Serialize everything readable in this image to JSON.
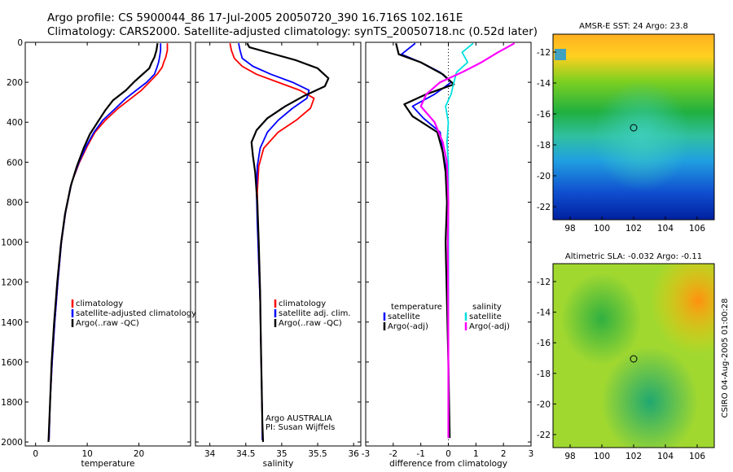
{
  "title": {
    "line1": "Argo profile: CS 5900044_86 17-Jul-2005 20050720_390 16.716S 102.161E",
    "line2": "Climatology: CARS2000. Satellite-adjusted climatology: synTS_20050718.nc (0.52d later)"
  },
  "colors": {
    "climatology": "#ff0000",
    "satellite": "#0000ff",
    "argo": "#000000",
    "salinity": "#00e0e0",
    "salinity_argo": "#ff00ff"
  },
  "chart_data": [
    {
      "type": "line",
      "xlabel": "temperature",
      "xlim": [
        -2,
        30
      ],
      "xticks": [
        0,
        10,
        20
      ],
      "ylim": [
        0,
        2020
      ],
      "yticks": [
        0,
        200,
        400,
        600,
        800,
        1000,
        1200,
        1400,
        1600,
        1800,
        2000
      ],
      "yinvert": true,
      "legend": [
        "climatology",
        "satellite-adjusted climatology",
        "Argo(..raw -QC)"
      ],
      "series": [
        {
          "name": "climatology",
          "color": "#ff0000",
          "x": [
            25.5,
            25.5,
            25.2,
            24.8,
            24.5,
            23.5,
            22.0,
            20.5,
            18.5,
            16.0,
            13.5,
            11.5,
            10.0,
            8.5,
            7.0,
            5.8,
            5.0,
            4.3,
            3.7,
            3.2,
            2.8,
            2.6
          ],
          "y": [
            5,
            40,
            75,
            100,
            125,
            160,
            200,
            240,
            280,
            330,
            390,
            450,
            520,
            600,
            700,
            850,
            1000,
            1200,
            1400,
            1600,
            1800,
            1990
          ]
        },
        {
          "name": "satellite-adjusted climatology",
          "color": "#0000ff",
          "x": [
            24.2,
            24.2,
            24.0,
            23.8,
            23.5,
            23.0,
            21.5,
            19.5,
            17.5,
            15.5,
            13.0,
            11.3,
            9.8,
            8.4,
            7.0,
            5.8,
            5.0,
            4.3,
            3.7,
            3.2,
            2.8,
            2.6
          ],
          "y": [
            5,
            40,
            75,
            100,
            125,
            160,
            200,
            240,
            280,
            330,
            390,
            450,
            520,
            600,
            700,
            850,
            1000,
            1200,
            1400,
            1600,
            1800,
            1990
          ]
        },
        {
          "name": "Argo(..raw -QC)",
          "color": "#000000",
          "x": [
            23.6,
            23.4,
            23.0,
            22.5,
            22.0,
            20.5,
            19.0,
            17.5,
            15.0,
            13.5,
            12.0,
            10.5,
            9.3,
            8.0,
            6.8,
            5.7,
            4.9,
            4.2,
            3.6,
            3.1,
            2.8,
            2.5
          ],
          "y": [
            5,
            40,
            75,
            100,
            130,
            165,
            200,
            240,
            290,
            340,
            400,
            460,
            530,
            620,
            720,
            860,
            1010,
            1200,
            1400,
            1600,
            1800,
            2000
          ]
        }
      ]
    },
    {
      "type": "line",
      "xlabel": "salinity",
      "xlim": [
        33.8,
        36.1
      ],
      "xticks": [
        34,
        34.5,
        35,
        35.5,
        36
      ],
      "ylim": [
        0,
        2020
      ],
      "yinvert": true,
      "legend": [
        "climatology",
        "satellite adj. clim.",
        "Argo(..raw -QC)"
      ],
      "annotations": [
        "Argo AUSTRALIA",
        "PI: Susan Wijffels"
      ],
      "series": [
        {
          "name": "climatology",
          "color": "#ff0000",
          "x": [
            34.28,
            34.3,
            34.34,
            34.45,
            34.65,
            34.95,
            35.25,
            35.45,
            35.4,
            35.2,
            34.95,
            34.75,
            34.68,
            34.66,
            34.67,
            34.68,
            34.7,
            34.71,
            34.72,
            34.73,
            34.73
          ],
          "y": [
            5,
            40,
            80,
            120,
            160,
            200,
            240,
            280,
            330,
            390,
            450,
            530,
            620,
            750,
            900,
            1100,
            1300,
            1500,
            1700,
            1900,
            1990
          ]
        },
        {
          "name": "satellite adj. clim.",
          "color": "#0000ff",
          "x": [
            34.4,
            34.42,
            34.45,
            34.6,
            34.85,
            35.15,
            35.38,
            35.35,
            35.15,
            34.95,
            34.8,
            34.7,
            34.66,
            34.65,
            34.66,
            34.68,
            34.7,
            34.71,
            34.72,
            34.73,
            34.73
          ],
          "y": [
            5,
            40,
            80,
            120,
            160,
            200,
            240,
            280,
            330,
            390,
            450,
            530,
            620,
            750,
            900,
            1100,
            1300,
            1500,
            1700,
            1900,
            1990
          ]
        },
        {
          "name": "Argo(..raw -QC)",
          "color": "#000000",
          "x": [
            34.52,
            34.55,
            34.85,
            35.2,
            35.5,
            35.65,
            35.6,
            35.3,
            35.05,
            34.8,
            34.65,
            34.58,
            34.6,
            34.63,
            34.66,
            34.68,
            34.7,
            34.71,
            34.72,
            34.73,
            34.74
          ],
          "y": [
            5,
            25,
            55,
            90,
            130,
            180,
            220,
            270,
            320,
            380,
            440,
            500,
            570,
            650,
            800,
            1000,
            1250,
            1500,
            1700,
            1900,
            2000
          ]
        }
      ]
    },
    {
      "type": "line",
      "xlabel": "difference from climatology",
      "xlim": [
        -3,
        3
      ],
      "xticks": [
        -3,
        -2,
        -1,
        0,
        1,
        2,
        3
      ],
      "ylim": [
        0,
        2020
      ],
      "yinvert": true,
      "legend": [
        "temperature",
        "satellite",
        "Argo(-adj)",
        "salinity",
        "satellite",
        "Argo(-adj)"
      ],
      "series": [
        {
          "name": "temperature satellite",
          "color": "#0000ff",
          "x": [
            -1.2,
            -1.7,
            -1.0,
            -0.3,
            0.1,
            -0.5,
            -1.3,
            -0.9,
            -0.3,
            -0.2,
            -0.05,
            0.0,
            0.0,
            0.0,
            0.0,
            0.0
          ],
          "y": [
            5,
            60,
            100,
            150,
            200,
            260,
            320,
            380,
            450,
            550,
            650,
            800,
            1000,
            1300,
            1600,
            1980
          ]
        },
        {
          "name": "temperature Argo(-adj)",
          "color": "#000000",
          "x": [
            -1.9,
            -1.8,
            -1.0,
            -0.2,
            0.2,
            -0.8,
            -1.6,
            -1.3,
            -0.4,
            -0.2,
            -0.1,
            -0.05,
            -0.1,
            -0.05,
            0.0,
            0.05
          ],
          "y": [
            5,
            60,
            100,
            160,
            210,
            260,
            310,
            370,
            450,
            550,
            650,
            800,
            1000,
            1300,
            1600,
            1980
          ]
        },
        {
          "name": "salinity satellite",
          "color": "#00e0e0",
          "x": [
            0.9,
            0.5,
            0.7,
            0.3,
            0.2,
            0.1,
            -0.1,
            0.0,
            -0.05,
            0.0,
            0.0,
            0.0,
            0.0,
            0.0
          ],
          "y": [
            5,
            50,
            100,
            150,
            200,
            260,
            320,
            400,
            500,
            600,
            800,
            1000,
            1500,
            1980
          ]
        },
        {
          "name": "salinity Argo(-adj)",
          "color": "#ff00ff",
          "x": [
            2.4,
            1.8,
            1.2,
            0.5,
            -0.3,
            -0.8,
            -1.0,
            -0.5,
            -0.2,
            -0.05,
            0.0,
            -0.02,
            0.0,
            0.0
          ],
          "y": [
            5,
            50,
            100,
            150,
            200,
            260,
            320,
            400,
            500,
            600,
            800,
            1000,
            1500,
            1980
          ]
        }
      ]
    }
  ],
  "maps": [
    {
      "title": "AMSR-E SST: 24 Argo: 23.8",
      "yticks": [
        "-12",
        "-14",
        "-16",
        "-18",
        "-20",
        "-22"
      ],
      "xticks": [
        "98",
        "100",
        "102",
        "104",
        "106"
      ]
    },
    {
      "title": "Altimetric SLA: -0.032 Argo: -0.11",
      "yticks": [
        "-12",
        "-14",
        "-16",
        "-18",
        "-20",
        "-22"
      ],
      "xticks": [
        "98",
        "100",
        "102",
        "104",
        "106"
      ]
    }
  ],
  "side_label": "CSIRO 04-Aug-2005 01:00:28"
}
